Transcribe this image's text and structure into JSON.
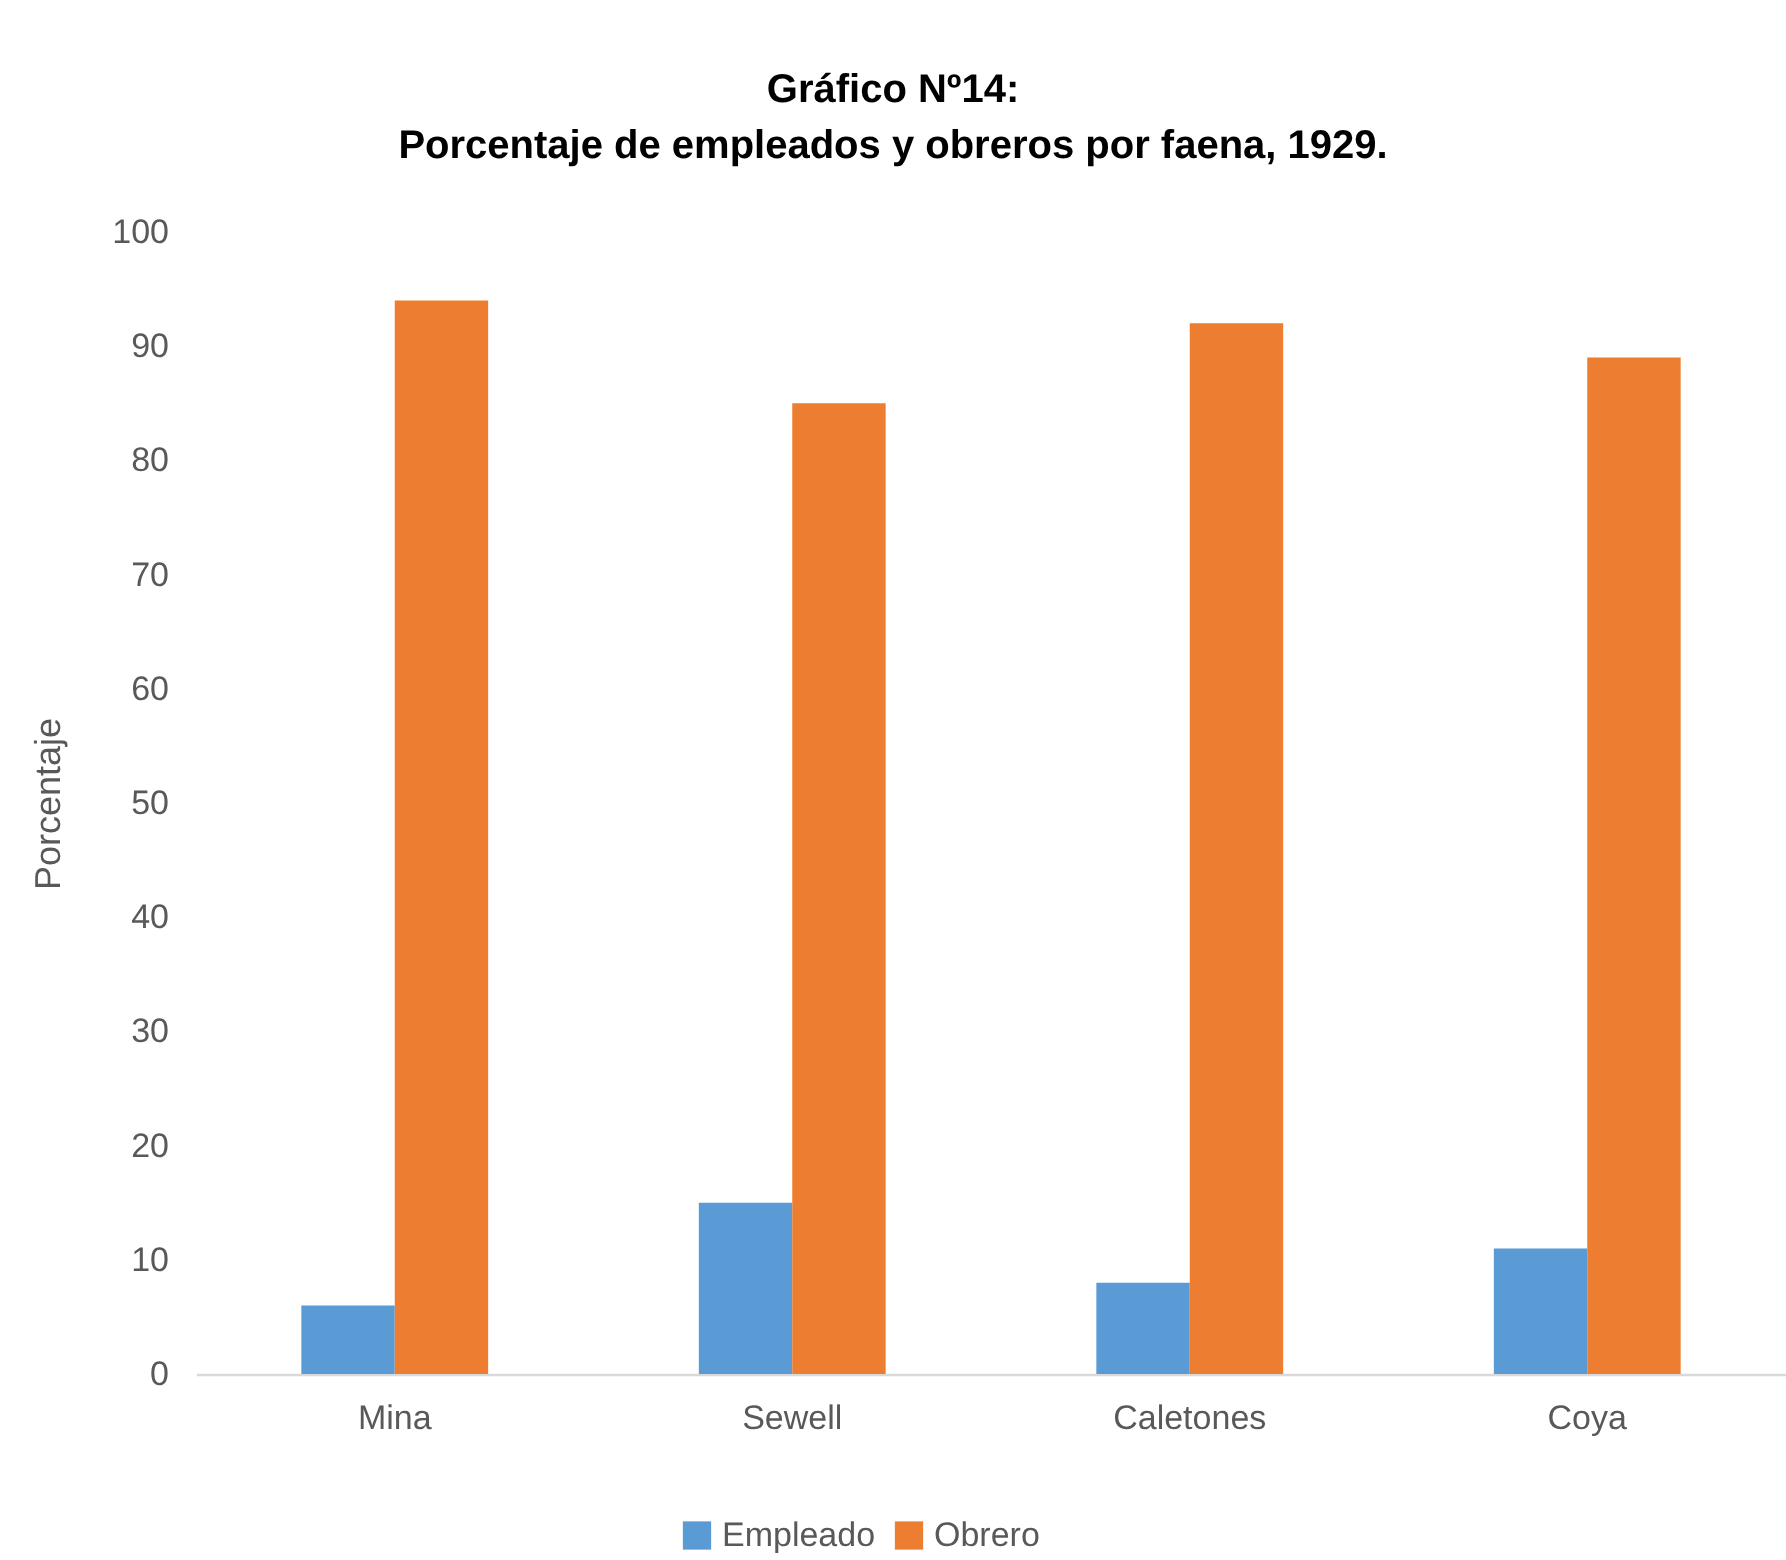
{
  "chart_data": {
    "type": "bar",
    "title": "Gráfico Nº14:",
    "subtitle": "Porcentaje de empleados y obreros por faena, 1929.",
    "ylabel": "Porcentaje",
    "categories": [
      "Mina",
      "Sewell",
      "Caletones",
      "Coya"
    ],
    "series": [
      {
        "name": "Empleado",
        "color": "#5b9bd5",
        "values": [
          6,
          15,
          8,
          11
        ]
      },
      {
        "name": "Obrero",
        "color": "#ed7d31",
        "values": [
          94,
          85,
          92,
          89
        ]
      }
    ],
    "ylim": [
      0,
      100
    ],
    "yticks": [
      0,
      10,
      20,
      30,
      40,
      50,
      60,
      70,
      80,
      90,
      100
    ],
    "grid": false,
    "legend": "bottom"
  }
}
